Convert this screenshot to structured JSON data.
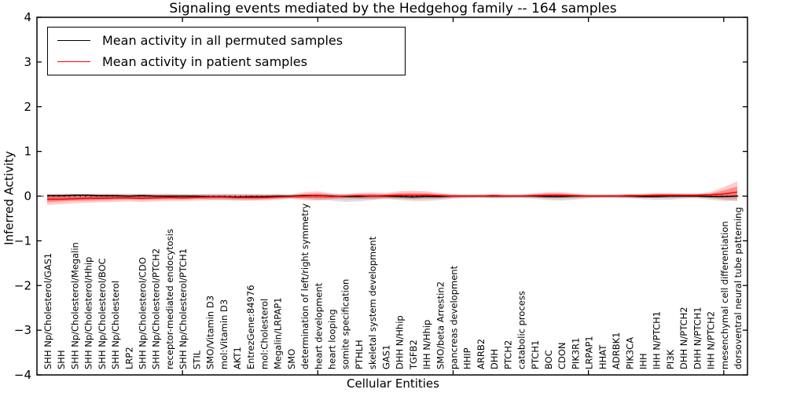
{
  "title": "Signaling events mediated by the Hedgehog family -- 164 samples",
  "axes": {
    "xlabel": "Cellular Entities",
    "ylabel": "Inferred Activity",
    "ylim": [
      -4,
      4
    ],
    "yticks": [
      -4,
      -3,
      -2,
      -1,
      0,
      1,
      2,
      3,
      4
    ],
    "frame_color": "#000000",
    "zero_line": true
  },
  "legend": {
    "items": [
      {
        "label": "Mean activity in all permuted samples",
        "color": "#000000"
      },
      {
        "label": "Mean activity in patient samples",
        "color": "#ff0000"
      }
    ]
  },
  "chart_data": {
    "type": "line",
    "title": "Signaling events mediated by the Hedgehog family -- 164 samples",
    "xlabel": "Cellular Entities",
    "ylabel": "Inferred Activity",
    "ylim": [
      -4,
      4
    ],
    "grid": false,
    "legend_position": "upper left",
    "categories": [
      "SHH Np/Cholesterol/GAS1",
      "SHH",
      "SHH Np/Cholesterol/Megalin",
      "SHH Np/Cholesterol/Hhip",
      "SHH Np/Cholesterol/BOC",
      "SHH Np/Cholesterol",
      "LRP2",
      "SHH Np/Cholesterol/CDO",
      "SHH Np/Cholesterol/PTCH2",
      "receptor-mediated endocytosis",
      "SHH Np/Cholesterol/PTCH1",
      "STIL",
      "SMO/Vitamin D3",
      "mol:Vitamin D3",
      "AKT1",
      "EntrezGene:84976",
      "mol:Cholesterol",
      "Megalin/LRPAP1",
      "SMO",
      "determination of left/right symmetry",
      "heart development",
      "heart looping",
      "somite specification",
      "PTHLH",
      "skeletal system development",
      "GAS1",
      "DHH N/Hhip",
      "TGFB2",
      "IHH N/Hhip",
      "SMO/beta Arrestin2",
      "pancreas development",
      "HHIP",
      "ARRB2",
      "DHH",
      "PTCH2",
      "catabolic process",
      "PTCH1",
      "BOC",
      "CDON",
      "PIK3R1",
      "LRPAP1",
      "HHAT",
      "ADRBK1",
      "PIK3CA",
      "IHH",
      "IHH N/PTCH1",
      "PI3K",
      "DHH N/PTCH2",
      "DHH N/PTCH1",
      "IHH N/PTCH2",
      "mesenchymal cell differentiation",
      "dorsoventral neural tube patterning"
    ],
    "series": [
      {
        "name": "Mean activity in all permuted samples",
        "color": "#000000",
        "values": [
          0.01,
          0.01,
          0.02,
          0.02,
          0.01,
          0.01,
          0.0,
          0.01,
          0.0,
          0.0,
          0.0,
          0.0,
          -0.01,
          -0.01,
          -0.02,
          -0.01,
          -0.01,
          0.0,
          0.0,
          0.01,
          0.01,
          0.0,
          -0.01,
          -0.01,
          0.0,
          0.0,
          -0.01,
          -0.02,
          -0.01,
          -0.01,
          0.0,
          0.0,
          0.0,
          0.0,
          0.0,
          0.0,
          0.0,
          -0.01,
          -0.01,
          0.0,
          0.0,
          0.0,
          0.0,
          0.0,
          -0.01,
          -0.01,
          0.0,
          0.0,
          0.0,
          -0.01,
          -0.01,
          0.0
        ]
      },
      {
        "name": "Mean activity in patient samples",
        "color": "#ff0000",
        "values": [
          -0.07,
          -0.07,
          -0.06,
          -0.05,
          -0.05,
          -0.04,
          -0.04,
          -0.05,
          -0.04,
          -0.03,
          -0.04,
          -0.03,
          -0.02,
          -0.02,
          -0.03,
          -0.03,
          -0.03,
          -0.02,
          -0.01,
          0.0,
          0.01,
          -0.01,
          0.0,
          0.01,
          0.0,
          0.01,
          0.02,
          0.02,
          0.02,
          0.01,
          0.0,
          0.0,
          0.0,
          0.01,
          0.0,
          0.0,
          0.01,
          0.02,
          0.02,
          0.01,
          0.0,
          0.0,
          0.0,
          0.01,
          0.01,
          0.02,
          0.02,
          0.02,
          0.02,
          0.03,
          0.05,
          0.09
        ]
      }
    ],
    "bands": [
      {
        "name": "permuted samples activity range",
        "color": "#000000",
        "outer_alpha": 0.13,
        "inner_alpha": 0.08,
        "upper": [
          0.05,
          0.05,
          0.05,
          0.05,
          0.05,
          0.05,
          0.04,
          0.05,
          0.04,
          0.04,
          0.04,
          0.04,
          0.05,
          0.05,
          0.05,
          0.05,
          0.04,
          0.04,
          0.04,
          0.05,
          0.06,
          0.05,
          0.05,
          0.05,
          0.05,
          0.04,
          0.05,
          0.05,
          0.05,
          0.05,
          0.04,
          0.04,
          0.04,
          0.04,
          0.04,
          0.04,
          0.05,
          0.05,
          0.05,
          0.04,
          0.04,
          0.04,
          0.04,
          0.04,
          0.05,
          0.05,
          0.05,
          0.04,
          0.04,
          0.05,
          0.06,
          0.05
        ],
        "lower": [
          -0.1,
          -0.09,
          -0.08,
          -0.08,
          -0.07,
          -0.07,
          -0.06,
          -0.07,
          -0.06,
          -0.06,
          -0.06,
          -0.05,
          -0.08,
          -0.09,
          -0.1,
          -0.09,
          -0.07,
          -0.06,
          -0.05,
          -0.06,
          -0.08,
          -0.1,
          -0.13,
          -0.12,
          -0.09,
          -0.06,
          -0.09,
          -0.11,
          -0.11,
          -0.09,
          -0.06,
          -0.05,
          -0.04,
          -0.05,
          -0.05,
          -0.04,
          -0.06,
          -0.09,
          -0.1,
          -0.08,
          -0.05,
          -0.04,
          -0.04,
          -0.05,
          -0.07,
          -0.08,
          -0.08,
          -0.06,
          -0.05,
          -0.08,
          -0.11,
          -0.09
        ]
      },
      {
        "name": "patient samples activity range",
        "color": "#ff0000",
        "outer_alpha": 0.2,
        "inner_alpha": 0.3,
        "upper": [
          0.05,
          0.05,
          0.05,
          0.05,
          0.05,
          0.05,
          0.05,
          0.05,
          0.05,
          0.05,
          0.04,
          0.04,
          0.04,
          0.04,
          0.04,
          0.04,
          0.04,
          0.04,
          0.03,
          0.09,
          0.11,
          0.06,
          0.04,
          0.07,
          0.08,
          0.07,
          0.11,
          0.12,
          0.11,
          0.07,
          0.04,
          0.03,
          0.03,
          0.05,
          0.03,
          0.03,
          0.06,
          0.09,
          0.09,
          0.06,
          0.03,
          0.03,
          0.03,
          0.05,
          0.05,
          0.07,
          0.07,
          0.06,
          0.06,
          0.09,
          0.2,
          0.33
        ],
        "lower": [
          -0.2,
          -0.18,
          -0.16,
          -0.15,
          -0.14,
          -0.13,
          -0.12,
          -0.13,
          -0.12,
          -0.11,
          -0.11,
          -0.1,
          -0.09,
          -0.08,
          -0.09,
          -0.1,
          -0.1,
          -0.08,
          -0.06,
          -0.09,
          -0.1,
          -0.07,
          -0.05,
          -0.06,
          -0.07,
          -0.06,
          -0.06,
          -0.07,
          -0.06,
          -0.06,
          -0.04,
          -0.03,
          -0.03,
          -0.04,
          -0.03,
          -0.03,
          -0.04,
          -0.05,
          -0.05,
          -0.04,
          -0.03,
          -0.03,
          -0.03,
          -0.04,
          -0.04,
          -0.04,
          -0.04,
          -0.03,
          -0.03,
          -0.04,
          -0.08,
          -0.12
        ]
      }
    ]
  }
}
